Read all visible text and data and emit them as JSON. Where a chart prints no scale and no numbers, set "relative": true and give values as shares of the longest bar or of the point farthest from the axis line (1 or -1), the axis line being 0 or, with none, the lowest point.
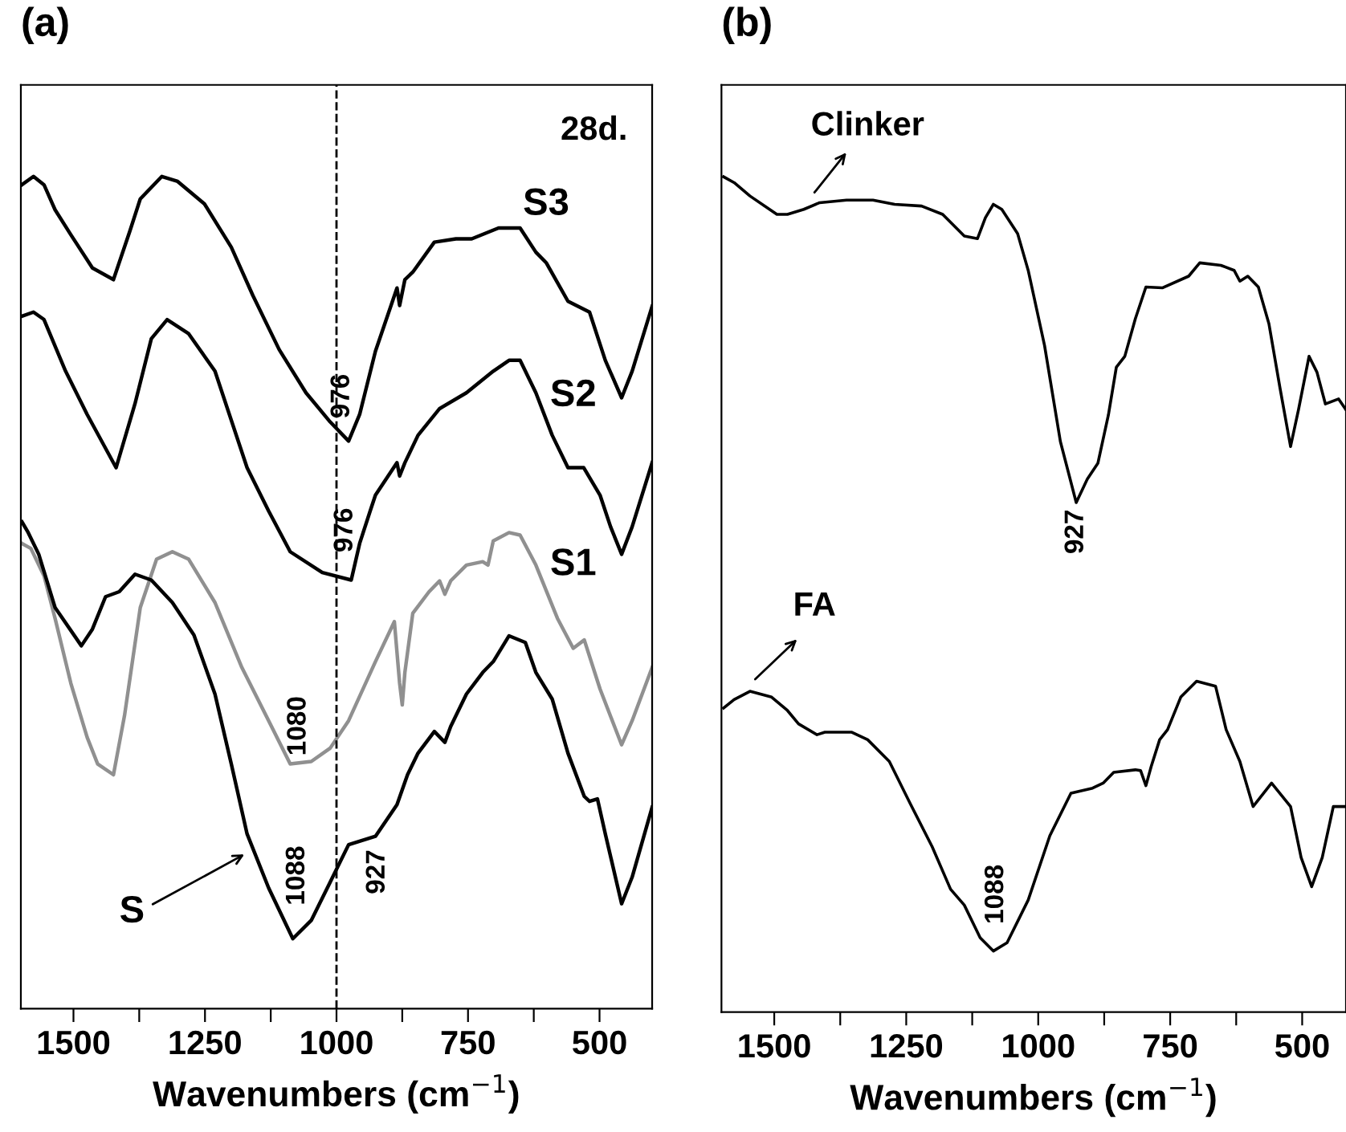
{
  "chart_data": [
    {
      "type": "line",
      "title": "(a)",
      "xlabel": "Wavenumbers (cm$^{−1}$)",
      "relative": true,
      "xlim": [
        1600,
        400
      ],
      "xticks": [
        1500,
        {
          "value": 1375,
          "label": null
        },
        1250,
        {
          "value": 1125,
          "label": null
        },
        1000,
        {
          "value": 875,
          "label": null
        },
        750,
        {
          "value": 625,
          "label": null
        },
        500
      ],
      "tick_labels": "x",
      "grid": false,
      "legend": false,
      "ref_lines": [
        {
          "axis": "x",
          "value": 1000,
          "color": "#000000",
          "line_style": "dashed"
        }
      ],
      "annotations": [
        "28d.",
        "S3",
        "S2",
        "S1",
        "S",
        "976",
        "976",
        "1080",
        "1088",
        "927"
      ],
      "series": [
        {
          "color": "#000000",
          "x": [
            1598,
            1576,
            1556,
            1535,
            1505,
            1464,
            1424,
            1393,
            1373,
            1332,
            1302,
            1251,
            1200,
            1159,
            1109,
            1058,
            1012,
            977,
            956,
            926,
            885,
            880,
            870,
            855,
            814,
            773,
            743,
            692,
            651,
            621,
            601,
            560,
            519,
            489,
            458,
            438,
            400
          ],
          "values": [
            0.99,
            1.0,
            0.99,
            0.96,
            0.93,
            0.89,
            0.876,
            0.934,
            0.973,
            1.0,
            0.994,
            0.967,
            0.915,
            0.857,
            0.792,
            0.74,
            0.705,
            0.682,
            0.714,
            0.79,
            0.866,
            0.845,
            0.876,
            0.885,
            0.921,
            0.925,
            0.925,
            0.938,
            0.938,
            0.909,
            0.896,
            0.85,
            0.837,
            0.779,
            0.734,
            0.766,
            0.844
          ]
        },
        {
          "color": "#000000",
          "x": [
            1598,
            1576,
            1556,
            1515,
            1474,
            1419,
            1383,
            1352,
            1322,
            1281,
            1231,
            1170,
            1129,
            1088,
            1027,
            972,
            956,
            936,
            926,
            885,
            880,
            870,
            845,
            804,
            753,
            702,
            672,
            651,
            621,
            590,
            560,
            530,
            499,
            479,
            458,
            438,
            400
          ],
          "values": [
            0.832,
            0.837,
            0.828,
            0.766,
            0.714,
            0.65,
            0.727,
            0.805,
            0.828,
            0.811,
            0.766,
            0.65,
            0.598,
            0.549,
            0.524,
            0.515,
            0.559,
            0.598,
            0.617,
            0.656,
            0.64,
            0.656,
            0.689,
            0.721,
            0.74,
            0.766,
            0.779,
            0.779,
            0.74,
            0.689,
            0.65,
            0.65,
            0.617,
            0.579,
            0.546,
            0.579,
            0.656
          ]
        },
        {
          "color": "#909090",
          "x": [
            1598,
            1581,
            1556,
            1535,
            1505,
            1474,
            1454,
            1424,
            1403,
            1373,
            1342,
            1312,
            1281,
            1231,
            1180,
            1129,
            1088,
            1048,
            1012,
            977,
            926,
            890,
            880,
            875,
            870,
            855,
            824,
            804,
            794,
            783,
            753,
            722,
            712,
            702,
            672,
            651,
            621,
            580,
            550,
            529,
            499,
            458,
            438,
            400
          ],
          "values": [
            0.559,
            0.553,
            0.52,
            0.469,
            0.391,
            0.326,
            0.294,
            0.281,
            0.352,
            0.482,
            0.54,
            0.549,
            0.54,
            0.488,
            0.41,
            0.346,
            0.294,
            0.297,
            0.313,
            0.346,
            0.417,
            0.465,
            0.391,
            0.365,
            0.404,
            0.475,
            0.501,
            0.514,
            0.498,
            0.514,
            0.533,
            0.537,
            0.533,
            0.562,
            0.572,
            0.569,
            0.533,
            0.469,
            0.433,
            0.443,
            0.384,
            0.317,
            0.346,
            0.41
          ]
        },
        {
          "color": "#000000",
          "x": [
            1598,
            1586,
            1566,
            1535,
            1485,
            1464,
            1439,
            1413,
            1383,
            1352,
            1312,
            1271,
            1231,
            1200,
            1170,
            1129,
            1083,
            1048,
            1012,
            977,
            926,
            885,
            865,
            845,
            814,
            794,
            783,
            753,
            722,
            702,
            672,
            641,
            621,
            590,
            560,
            529,
            519,
            504,
            489,
            458,
            438,
            400
          ],
          "values": [
            0.585,
            0.572,
            0.546,
            0.482,
            0.436,
            0.456,
            0.495,
            0.501,
            0.522,
            0.515,
            0.488,
            0.449,
            0.378,
            0.294,
            0.21,
            0.145,
            0.084,
            0.106,
            0.152,
            0.197,
            0.207,
            0.245,
            0.281,
            0.307,
            0.333,
            0.32,
            0.339,
            0.378,
            0.404,
            0.417,
            0.448,
            0.44,
            0.404,
            0.372,
            0.307,
            0.255,
            0.249,
            0.252,
            0.21,
            0.126,
            0.158,
            0.242
          ]
        }
      ]
    },
    {
      "type": "line",
      "title": "(b)",
      "xlabel": "Wavenumbers (cm$^{−1}$)",
      "relative": true,
      "xlim": [
        1600,
        417
      ],
      "xticks": [
        1500,
        {
          "value": 1375,
          "label": null
        },
        1250,
        {
          "value": 1125,
          "label": null
        },
        1000,
        {
          "value": 875,
          "label": null
        },
        750,
        {
          "value": 625,
          "label": null
        },
        500
      ],
      "tick_labels": "x",
      "grid": false,
      "legend": false,
      "annotations": [
        "Clinker",
        "FA",
        "927",
        "1088"
      ],
      "series": [
        {
          "color": "#000000",
          "x": [
            1596,
            1576,
            1546,
            1495,
            1475,
            1444,
            1414,
            1363,
            1313,
            1272,
            1221,
            1181,
            1140,
            1115,
            1100,
            1085,
            1069,
            1039,
            1019,
            988,
            958,
            928,
            907,
            887,
            867,
            852,
            836,
            816,
            796,
            765,
            715,
            694,
            654,
            629,
            618,
            603,
            583,
            563,
            542,
            522,
            507,
            487,
            472,
            456,
            431,
            417
          ],
          "values": [
            1.0,
            0.993,
            0.977,
            0.955,
            0.955,
            0.961,
            0.969,
            0.972,
            0.972,
            0.967,
            0.965,
            0.955,
            0.929,
            0.926,
            0.951,
            0.967,
            0.961,
            0.932,
            0.888,
            0.798,
            0.683,
            0.61,
            0.638,
            0.657,
            0.715,
            0.772,
            0.785,
            0.83,
            0.868,
            0.867,
            0.881,
            0.897,
            0.894,
            0.888,
            0.875,
            0.881,
            0.868,
            0.824,
            0.747,
            0.677,
            0.721,
            0.785,
            0.766,
            0.728,
            0.734,
            0.721
          ]
        },
        {
          "color": "#000000",
          "x": [
            1596,
            1576,
            1546,
            1505,
            1475,
            1454,
            1419,
            1404,
            1353,
            1323,
            1282,
            1242,
            1201,
            1166,
            1140,
            1110,
            1085,
            1059,
            1019,
            978,
            938,
            897,
            877,
            857,
            816,
            806,
            796,
            786,
            770,
            755,
            730,
            700,
            664,
            644,
            618,
            593,
            558,
            522,
            502,
            482,
            462,
            441,
            417
          ],
          "values": [
            0.364,
            0.374,
            0.384,
            0.377,
            0.361,
            0.345,
            0.332,
            0.335,
            0.335,
            0.326,
            0.3,
            0.249,
            0.198,
            0.147,
            0.128,
            0.089,
            0.073,
            0.083,
            0.134,
            0.211,
            0.262,
            0.268,
            0.274,
            0.287,
            0.29,
            0.289,
            0.271,
            0.294,
            0.326,
            0.338,
            0.377,
            0.396,
            0.39,
            0.338,
            0.3,
            0.246,
            0.274,
            0.246,
            0.185,
            0.15,
            0.185,
            0.246,
            0.246
          ]
        }
      ]
    }
  ]
}
